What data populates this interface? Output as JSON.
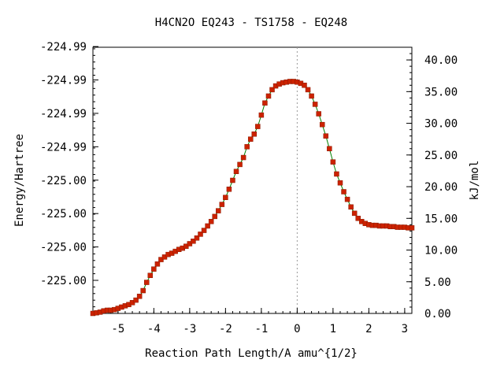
{
  "chart_data": {
    "type": "line",
    "title": "H4CN2O   EQ243 - TS1758 - EQ248",
    "xlabel": "Reaction Path Length/A amu^{1/2}",
    "ylabel_left": "Energy/Hartree",
    "ylabel_right": "kJ/mol",
    "xlim": [
      -5.7,
      3.2
    ],
    "x_ticks": [
      -5,
      -4,
      -3,
      -2,
      -1,
      0,
      1,
      2,
      3
    ],
    "x_tick_labels": [
      "-5",
      "-4",
      "-3",
      "-2",
      "-1",
      "0",
      "1",
      "2",
      "3"
    ],
    "y_right_lim": [
      0,
      42
    ],
    "y_right_ticks": [
      0,
      5,
      10,
      15,
      20,
      25,
      30,
      35,
      40
    ],
    "y_right_tick_labels": [
      "0.00",
      "5.00",
      "10.00",
      "15.00",
      "20.00",
      "25.00",
      "30.00",
      "35.00",
      "40.00"
    ],
    "y_left_ticks_kjmol": [
      5.22,
      10.49,
      15.76,
      21.03,
      26.3,
      31.57,
      36.84,
      42.11
    ],
    "y_left_tick_labels": [
      "-225.00",
      "-225.00",
      "-225.00",
      "-225.00",
      "-224.99",
      "-224.99",
      "-224.99",
      "-224.99"
    ],
    "grid": false,
    "ts_marker_x": 0,
    "series": [
      {
        "color": "#008000",
        "marker_color": "#cc2200",
        "x": [
          -5.7,
          -5.6,
          -5.5,
          -5.4,
          -5.3,
          -5.2,
          -5.1,
          -5.0,
          -4.9,
          -4.8,
          -4.7,
          -4.6,
          -4.5,
          -4.4,
          -4.3,
          -4.2,
          -4.1,
          -4.0,
          -3.9,
          -3.8,
          -3.7,
          -3.6,
          -3.5,
          -3.4,
          -3.3,
          -3.2,
          -3.1,
          -3.0,
          -2.9,
          -2.8,
          -2.7,
          -2.6,
          -2.5,
          -2.4,
          -2.3,
          -2.2,
          -2.1,
          -2.0,
          -1.9,
          -1.8,
          -1.7,
          -1.6,
          -1.5,
          -1.4,
          -1.3,
          -1.2,
          -1.1,
          -1.0,
          -0.9,
          -0.8,
          -0.7,
          -0.6,
          -0.5,
          -0.4,
          -0.3,
          -0.2,
          -0.1,
          0.0,
          0.1,
          0.2,
          0.3,
          0.4,
          0.5,
          0.6,
          0.7,
          0.8,
          0.9,
          1.0,
          1.1,
          1.2,
          1.3,
          1.4,
          1.5,
          1.6,
          1.7,
          1.8,
          1.9,
          2.0,
          2.1,
          2.2,
          2.3,
          2.4,
          2.5,
          2.6,
          2.7,
          2.8,
          2.9,
          3.0,
          3.1,
          3.2
        ],
        "y": [
          0.0,
          0.1,
          0.2,
          0.4,
          0.5,
          0.5,
          0.6,
          0.8,
          1.0,
          1.2,
          1.4,
          1.7,
          2.1,
          2.7,
          3.6,
          4.9,
          6.0,
          7.0,
          7.8,
          8.5,
          8.9,
          9.3,
          9.5,
          9.8,
          10.1,
          10.3,
          10.6,
          11.0,
          11.4,
          11.9,
          12.5,
          13.1,
          13.8,
          14.5,
          15.3,
          16.2,
          17.2,
          18.3,
          19.6,
          21.0,
          22.4,
          23.5,
          24.6,
          26.3,
          27.5,
          28.3,
          29.5,
          31.3,
          33.2,
          34.3,
          35.3,
          35.9,
          36.2,
          36.4,
          36.5,
          36.6,
          36.6,
          36.5,
          36.3,
          36.0,
          35.3,
          34.3,
          33.0,
          31.5,
          29.8,
          28.0,
          26.0,
          23.9,
          22.0,
          20.6,
          19.2,
          18.0,
          16.8,
          15.8,
          15.0,
          14.5,
          14.2,
          14.0,
          13.9,
          13.9,
          13.8,
          13.8,
          13.8,
          13.7,
          13.7,
          13.6,
          13.6,
          13.6,
          13.5,
          13.5
        ]
      }
    ]
  }
}
